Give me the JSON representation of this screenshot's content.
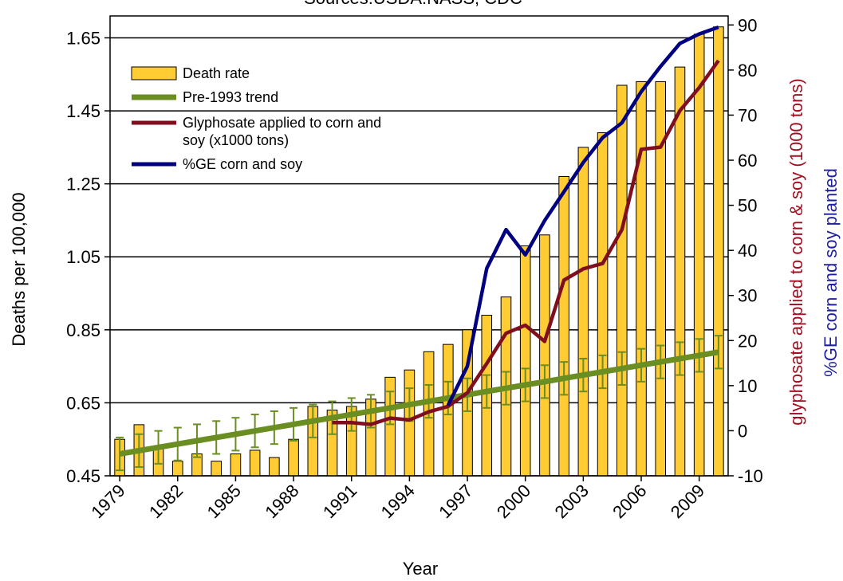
{
  "chart_data": {
    "type": "bar",
    "title": "Sources:USDA:NASS; CDC",
    "xlabel": "Year",
    "ylabel_left": "Deaths per 100,000",
    "ylabel_right_1": "glyphosate applied to corn & soy (1000 tons)",
    "ylabel_right_2": "%GE corn and soy planted",
    "ylim_left": [
      0.45,
      1.71
    ],
    "ylim_right": [
      -10,
      92
    ],
    "yticks_left": [
      "0.45",
      "0.65",
      "0.85",
      "1.05",
      "1.25",
      "1.45",
      "1.65"
    ],
    "yticks_right": [
      "-10",
      "0",
      "10",
      "20",
      "30",
      "40",
      "50",
      "60",
      "70",
      "80",
      "90"
    ],
    "x_tick_labels": [
      "1979",
      "1982",
      "1985",
      "1988",
      "1991",
      "1994",
      "1997",
      "2000",
      "2003",
      "2006",
      "2009"
    ],
    "years": [
      1979,
      1980,
      1981,
      1982,
      1983,
      1984,
      1985,
      1986,
      1987,
      1988,
      1989,
      1990,
      1991,
      1992,
      1993,
      1994,
      1995,
      1996,
      1997,
      1998,
      1999,
      2000,
      2001,
      2002,
      2003,
      2004,
      2005,
      2006,
      2007,
      2008,
      2009,
      2010
    ],
    "legend": {
      "placement": "top-left",
      "entries": [
        {
          "label": "Death rate",
          "color": "#ffcc33"
        },
        {
          "label": "Pre-1993 trend",
          "color": "#6b8e23"
        },
        {
          "label": "Glyphosate applied to corn and soy (x1000 tons)",
          "color": "#7f0f1f"
        },
        {
          "label": "%GE corn and soy",
          "color": "#000080"
        }
      ]
    },
    "series": [
      {
        "name": "Death rate",
        "type": "bar",
        "axis": "left",
        "color": "#ffcc33",
        "values": [
          0.55,
          0.59,
          0.53,
          0.49,
          0.51,
          0.49,
          0.51,
          0.52,
          0.5,
          0.55,
          0.64,
          0.63,
          0.64,
          0.66,
          0.72,
          0.74,
          0.79,
          0.81,
          0.85,
          0.89,
          0.94,
          1.08,
          1.11,
          1.27,
          1.35,
          1.39,
          1.52,
          1.53,
          1.53,
          1.57,
          1.66,
          1.68
        ]
      },
      {
        "name": "Pre-1993 trend",
        "type": "trend",
        "axis": "left",
        "color": "#6b8e23",
        "values": [
          0.51,
          0.519,
          0.528,
          0.537,
          0.546,
          0.555,
          0.564,
          0.573,
          0.582,
          0.591,
          0.6,
          0.609,
          0.618,
          0.627,
          0.636,
          0.645,
          0.654,
          0.663,
          0.672,
          0.681,
          0.69,
          0.699,
          0.708,
          0.717,
          0.726,
          0.735,
          0.744,
          0.753,
          0.762,
          0.771,
          0.78,
          0.789
        ],
        "error": 0.045
      },
      {
        "name": "Glyphosate applied to corn and soy (x1000 tons)",
        "type": "line",
        "axis": "right",
        "color": "#7f0f1f",
        "x": [
          1990,
          1991,
          1992,
          1993,
          1994,
          1995,
          1996,
          1997,
          1998,
          1999,
          2000,
          2001,
          2002,
          2003,
          2004,
          2005,
          2006,
          2007,
          2008,
          2009,
          2010
        ],
        "values": [
          1.8,
          1.8,
          1.4,
          2.8,
          2.4,
          4.2,
          5.4,
          8.4,
          14.9,
          21.6,
          23.4,
          19.8,
          33.4,
          35.9,
          37.1,
          44.6,
          62.4,
          62.9,
          71.0,
          76.1,
          82.1
        ]
      },
      {
        "name": "%GE corn and soy",
        "type": "line",
        "axis": "right",
        "color": "#000080",
        "x": [
          1996,
          1997,
          1998,
          1999,
          2000,
          2001,
          2002,
          2003,
          2004,
          2005,
          2006,
          2007,
          2008,
          2009,
          2010
        ],
        "values": [
          5.6,
          14.3,
          36.0,
          44.6,
          39.0,
          46.6,
          53.0,
          59.5,
          65.0,
          68.3,
          75.2,
          80.8,
          85.9,
          88.0,
          89.5
        ]
      }
    ]
  }
}
